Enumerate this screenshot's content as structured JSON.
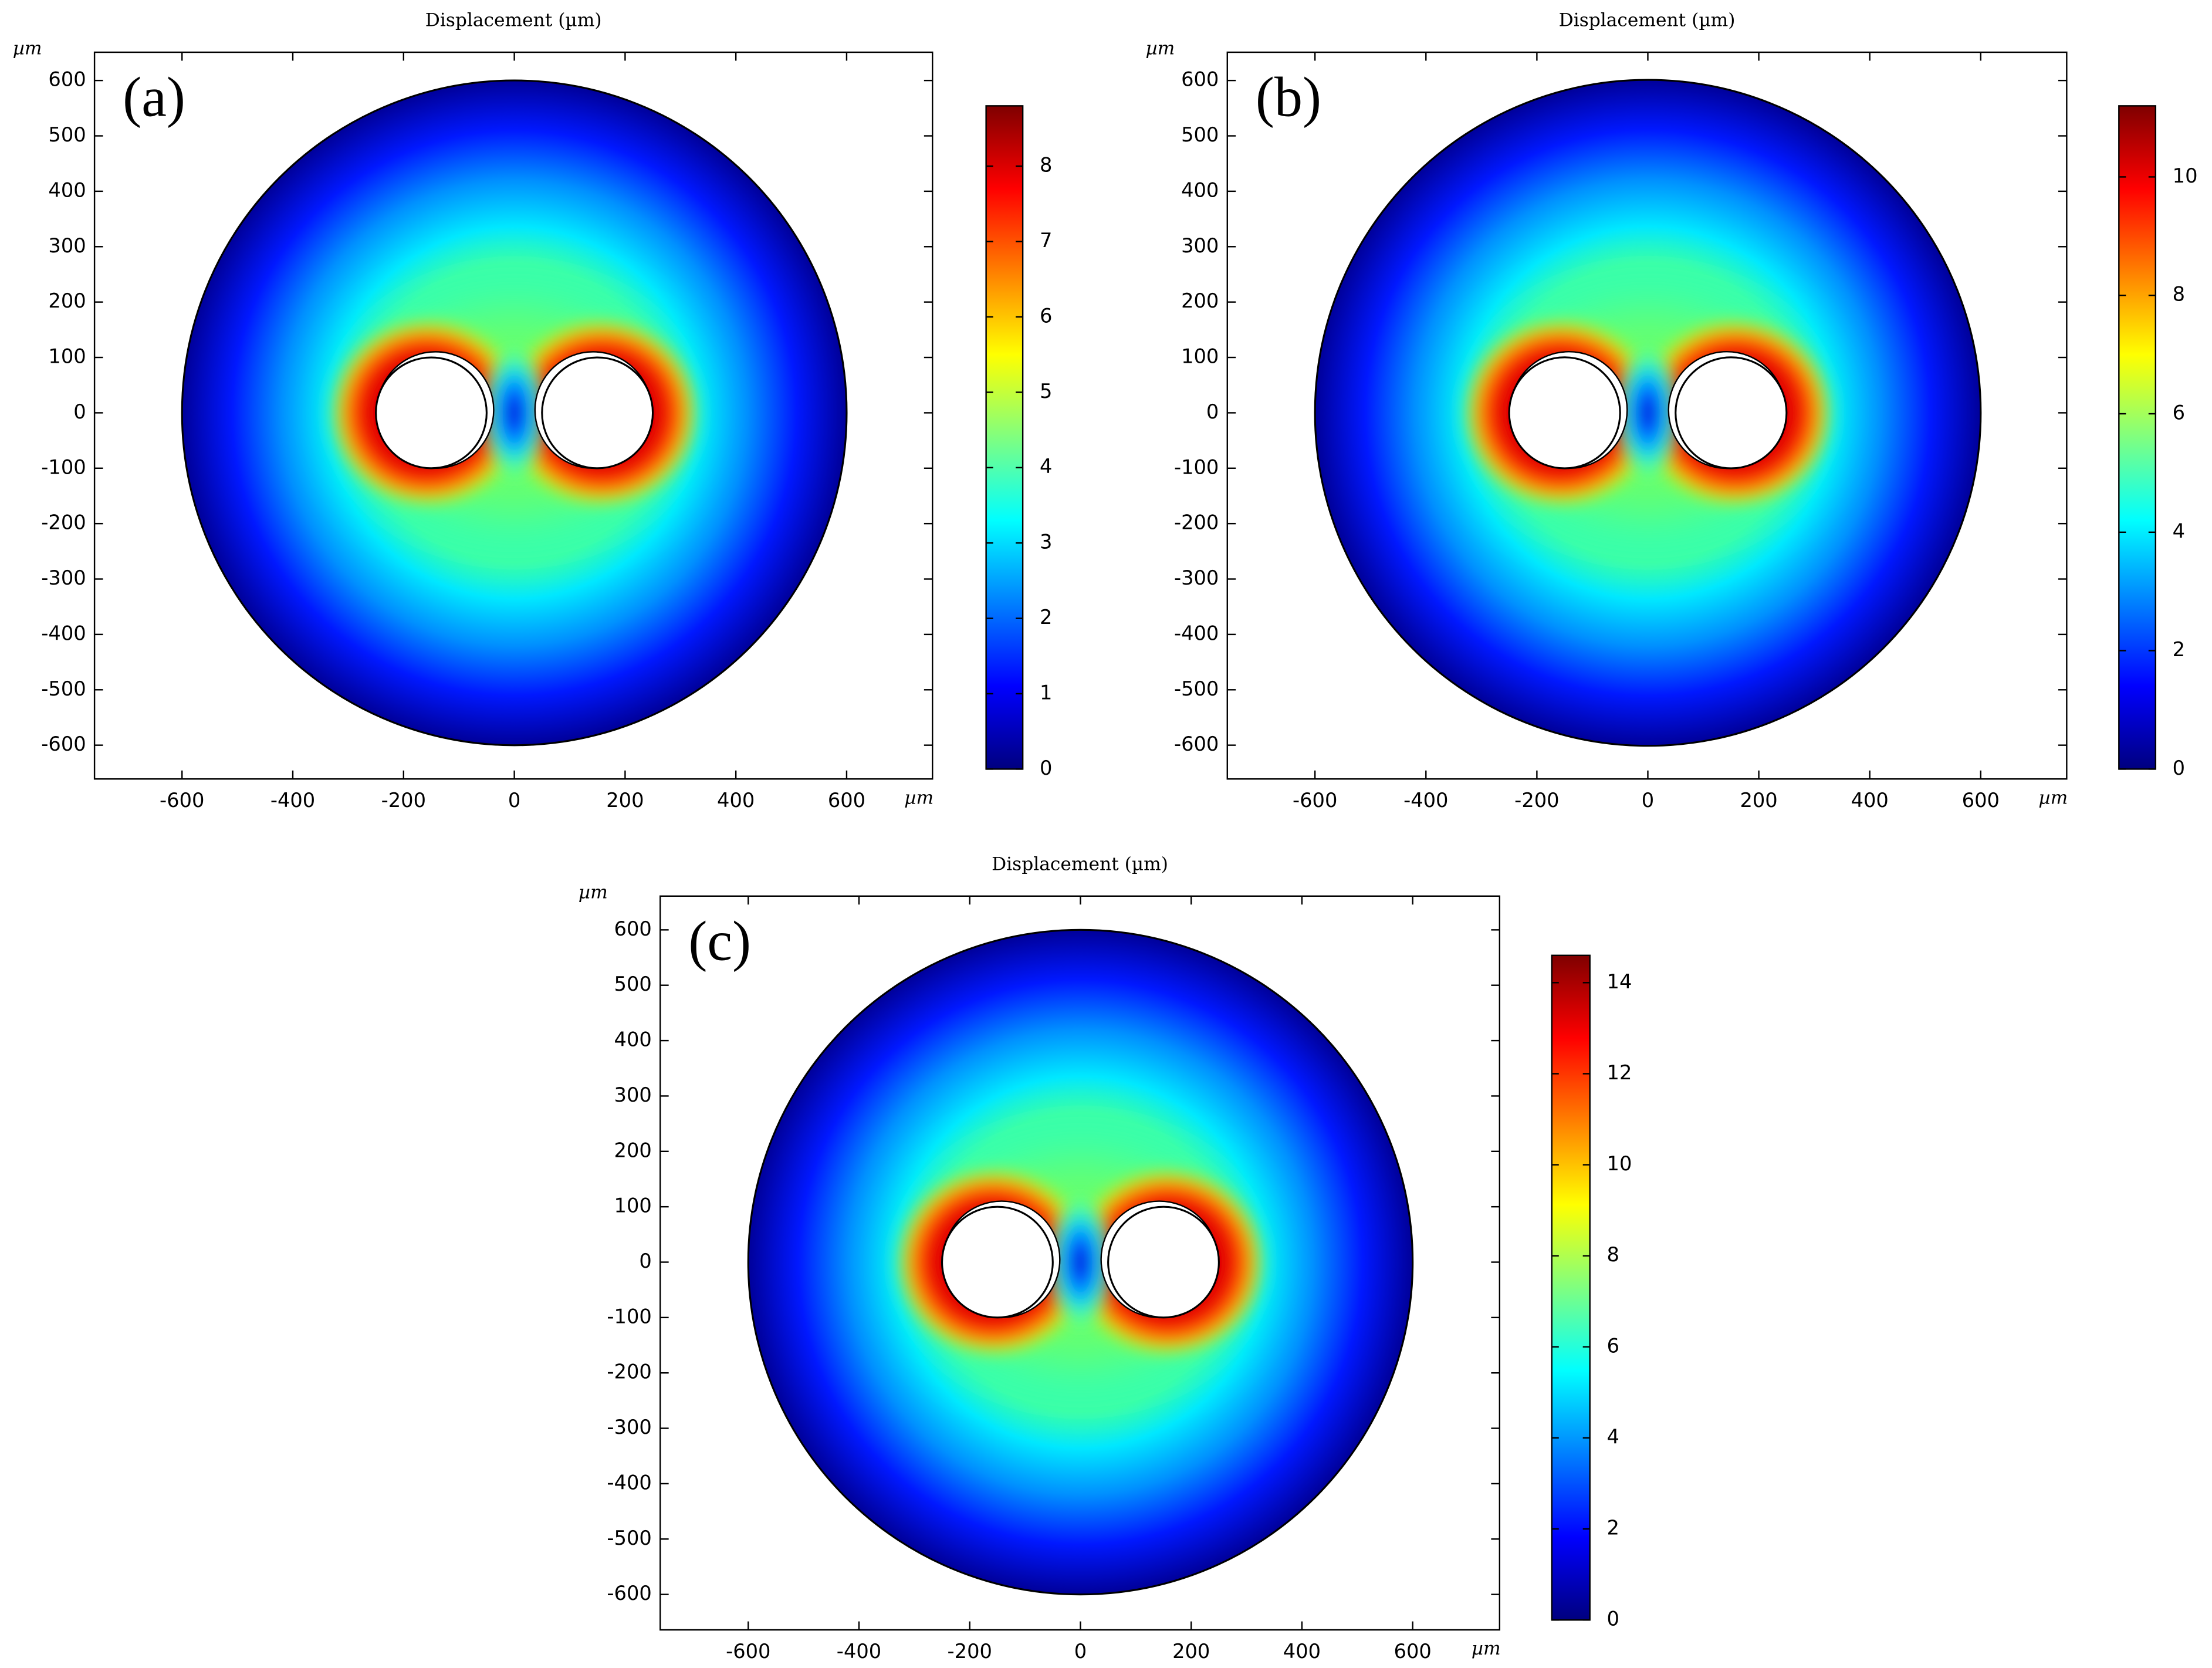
{
  "chart_data": [
    {
      "type": "surface",
      "title": "Displacement (µm)",
      "panel_label": "(a)",
      "x_unit": "µm",
      "y_unit": "µm",
      "xlim": [
        -758,
        755
      ],
      "ylim": [
        -661,
        651
      ],
      "xticks": [
        -600,
        -400,
        -200,
        0,
        200,
        400,
        600
      ],
      "yticks": [
        -600,
        -500,
        -400,
        -300,
        -200,
        -100,
        0,
        100,
        200,
        300,
        400,
        500,
        600
      ],
      "domain_radius": 600,
      "holes": [
        {
          "x": -150,
          "y": 0,
          "r": 100
        },
        {
          "x": 150,
          "y": 0,
          "r": 100
        }
      ],
      "colormap": "jet",
      "clim": [
        0,
        8.8
      ],
      "cticks": [
        0,
        1,
        2,
        3,
        4,
        5,
        6,
        7,
        8
      ]
    },
    {
      "type": "surface",
      "title": "Displacement (µm)",
      "panel_label": "(b)",
      "x_unit": "µm",
      "y_unit": "µm",
      "xlim": [
        -758,
        755
      ],
      "ylim": [
        -661,
        651
      ],
      "xticks": [
        -600,
        -400,
        -200,
        0,
        200,
        400,
        600
      ],
      "yticks": [
        -600,
        -500,
        -400,
        -300,
        -200,
        -100,
        0,
        100,
        200,
        300,
        400,
        500,
        600
      ],
      "domain_radius": 600,
      "holes": [
        {
          "x": -150,
          "y": 0,
          "r": 100
        },
        {
          "x": 150,
          "y": 0,
          "r": 100
        }
      ],
      "colormap": "jet",
      "clim": [
        0,
        11.2
      ],
      "cticks": [
        0,
        2,
        4,
        6,
        8,
        10
      ]
    },
    {
      "type": "surface",
      "title": "Displacement (µm)",
      "panel_label": "(c)",
      "x_unit": "µm",
      "y_unit": "µm",
      "xlim": [
        -759,
        757
      ],
      "ylim": [
        -664,
        661
      ],
      "xticks": [
        -600,
        -400,
        -200,
        0,
        200,
        400,
        600
      ],
      "yticks": [
        -600,
        -500,
        -400,
        -300,
        -200,
        -100,
        0,
        100,
        200,
        300,
        400,
        500,
        600
      ],
      "domain_radius": 600,
      "holes": [
        {
          "x": -150,
          "y": 0,
          "r": 100
        },
        {
          "x": 150,
          "y": 0,
          "r": 100
        }
      ],
      "colormap": "jet",
      "clim": [
        0,
        14.6
      ],
      "cticks": [
        0,
        2,
        4,
        6,
        8,
        10,
        12,
        14
      ]
    }
  ]
}
